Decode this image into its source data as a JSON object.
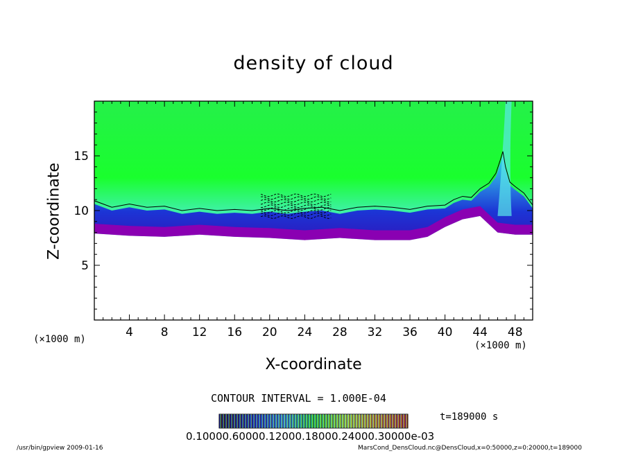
{
  "chart_data": {
    "type": "heatmap",
    "title": "density of cloud",
    "xlabel": "X-coordinate",
    "ylabel": "Z-coordinate",
    "x_unit": "(×1000 m)",
    "xlim": [
      0,
      50
    ],
    "ylim": [
      0,
      20
    ],
    "x_ticks": [
      4,
      8,
      12,
      16,
      20,
      24,
      28,
      32,
      36,
      40,
      44,
      48
    ],
    "y_ticks": [
      5,
      10,
      15
    ],
    "contour_interval": "CONTOUR INTERVAL = 1.000E-04",
    "time_label": "t=189000 s",
    "colorbar_labels": "0.10000.60000.12000.18000.24000.30000e-03",
    "cloud_base": [
      {
        "x": 0,
        "z": 7.9
      },
      {
        "x": 4,
        "z": 7.7
      },
      {
        "x": 8,
        "z": 7.6
      },
      {
        "x": 12,
        "z": 7.8
      },
      {
        "x": 16,
        "z": 7.6
      },
      {
        "x": 20,
        "z": 7.5
      },
      {
        "x": 24,
        "z": 7.3
      },
      {
        "x": 28,
        "z": 7.5
      },
      {
        "x": 32,
        "z": 7.3
      },
      {
        "x": 36,
        "z": 7.3
      },
      {
        "x": 38,
        "z": 7.6
      },
      {
        "x": 40,
        "z": 8.5
      },
      {
        "x": 42,
        "z": 9.2
      },
      {
        "x": 44,
        "z": 9.5
      },
      {
        "x": 46,
        "z": 8.0
      },
      {
        "x": 48,
        "z": 7.8
      },
      {
        "x": 50,
        "z": 7.8
      }
    ],
    "contour_line": [
      {
        "x": 0,
        "z": 10.9
      },
      {
        "x": 2,
        "z": 10.3
      },
      {
        "x": 4,
        "z": 10.6
      },
      {
        "x": 6,
        "z": 10.3
      },
      {
        "x": 8,
        "z": 10.4
      },
      {
        "x": 10,
        "z": 10.0
      },
      {
        "x": 12,
        "z": 10.2
      },
      {
        "x": 14,
        "z": 10.0
      },
      {
        "x": 16,
        "z": 10.1
      },
      {
        "x": 18,
        "z": 10.0
      },
      {
        "x": 20,
        "z": 10.2
      },
      {
        "x": 22,
        "z": 10.0
      },
      {
        "x": 24,
        "z": 10.2
      },
      {
        "x": 26,
        "z": 10.3
      },
      {
        "x": 28,
        "z": 10.0
      },
      {
        "x": 30,
        "z": 10.3
      },
      {
        "x": 32,
        "z": 10.4
      },
      {
        "x": 34,
        "z": 10.3
      },
      {
        "x": 36,
        "z": 10.1
      },
      {
        "x": 38,
        "z": 10.4
      },
      {
        "x": 40,
        "z": 10.5
      },
      {
        "x": 41,
        "z": 11.0
      },
      {
        "x": 42,
        "z": 11.3
      },
      {
        "x": 43,
        "z": 11.2
      },
      {
        "x": 44,
        "z": 12.0
      },
      {
        "x": 45,
        "z": 12.5
      },
      {
        "x": 45.8,
        "z": 13.4
      },
      {
        "x": 46.3,
        "z": 14.6
      },
      {
        "x": 46.6,
        "z": 15.4
      },
      {
        "x": 46.9,
        "z": 14.0
      },
      {
        "x": 47.4,
        "z": 12.6
      },
      {
        "x": 48,
        "z": 12.2
      },
      {
        "x": 49,
        "z": 11.6
      },
      {
        "x": 50,
        "z": 10.5
      }
    ]
  },
  "axes": {
    "x_unit_left": "(×1000 m)",
    "x_unit_right": "(×1000 m)"
  },
  "footer": {
    "left": "/usr/bin/gpview   2009-01-16",
    "right": "MarsCond_DensCloud.nc@DensCloud,x=0:50000,z=0:20000,t=189000"
  },
  "colors": {
    "green": "#19ff2d",
    "cyan": "#3cf0c8",
    "blue": "#1a2bd8",
    "purple": "#8a00b2"
  }
}
